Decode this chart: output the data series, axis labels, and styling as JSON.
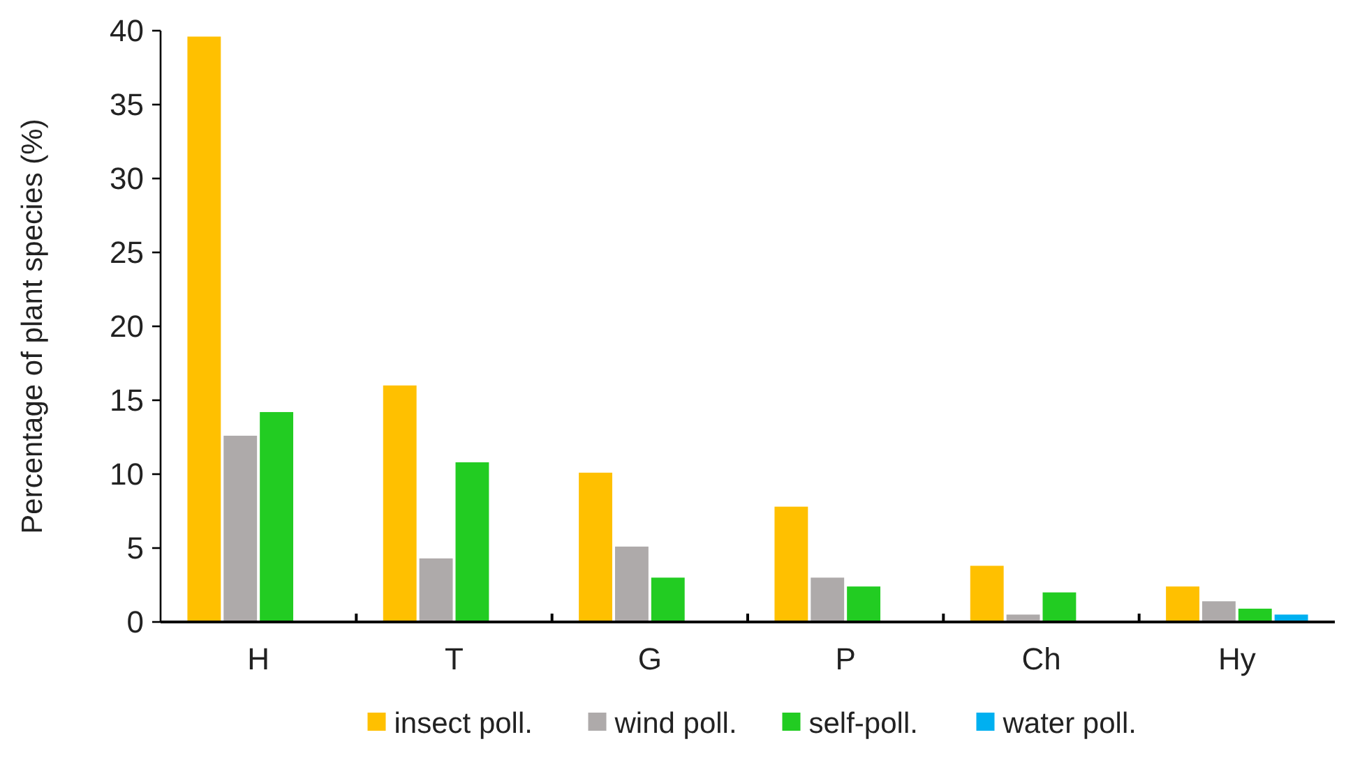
{
  "chart_data": {
    "type": "bar",
    "ylabel": "Percentage of plant species (%)",
    "categories": [
      "H",
      "T",
      "G",
      "P",
      "Ch",
      "Hy"
    ],
    "series": [
      {
        "name": "insect poll.",
        "color": "#ffc000",
        "values": [
          39.6,
          16.0,
          10.1,
          7.8,
          3.8,
          2.4
        ]
      },
      {
        "name": "wind poll.",
        "color": "#aeaaaa",
        "values": [
          12.6,
          4.3,
          5.1,
          3.0,
          0.5,
          1.4
        ]
      },
      {
        "name": "self-poll.",
        "color": "#22cc22",
        "values": [
          14.2,
          10.8,
          3.0,
          2.4,
          2.0,
          0.9
        ]
      },
      {
        "name": "water poll.",
        "color": "#00b0f0",
        "values": [
          null,
          null,
          null,
          null,
          null,
          0.5
        ]
      }
    ],
    "ylim": [
      0,
      40
    ],
    "yticks": [
      0,
      5,
      10,
      15,
      20,
      25,
      30,
      35,
      40
    ],
    "grid": false,
    "legend": "bottom"
  }
}
